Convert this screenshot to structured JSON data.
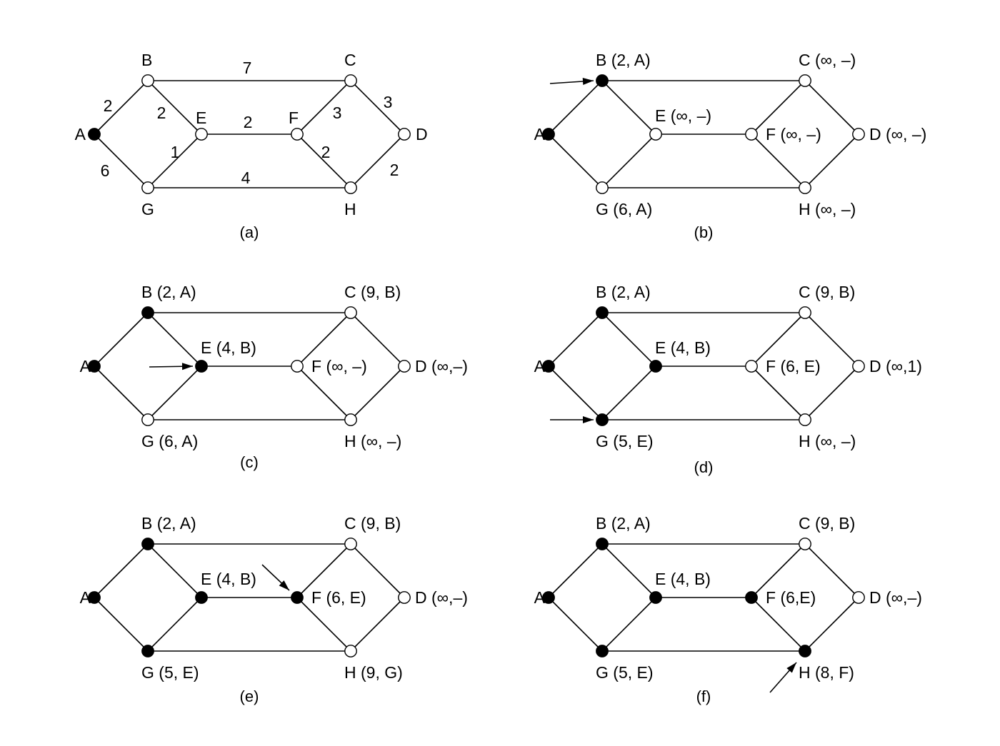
{
  "panels": [
    {
      "caption": "(a)",
      "nodes": {
        "A": {
          "label": "A",
          "filled": true
        },
        "B": {
          "label": "B",
          "filled": false
        },
        "C": {
          "label": "C",
          "filled": false
        },
        "D": {
          "label": "D",
          "filled": false
        },
        "E": {
          "label": "E",
          "filled": false
        },
        "F": {
          "label": "F",
          "filled": false
        },
        "G": {
          "label": "G",
          "filled": false
        },
        "H": {
          "label": "H",
          "filled": false
        }
      },
      "edge_weights": {
        "AB": "2",
        "AG": "6",
        "BC": "7",
        "BE": "2",
        "EF": "2",
        "EG": "1",
        "CF": "3",
        "CD": "3",
        "FH": "2",
        "DH": "2",
        "GH": "4"
      },
      "arrow_to": null
    },
    {
      "caption": "(b)",
      "nodes": {
        "A": {
          "label": "A",
          "filled": true
        },
        "B": {
          "label": "B (2, A)",
          "filled": true
        },
        "C": {
          "label": "C (∞, –)",
          "filled": false
        },
        "D": {
          "label": "D (∞, –)",
          "filled": false
        },
        "E": {
          "label": "E (∞, –)",
          "filled": false
        },
        "F": {
          "label": "F (∞, –)",
          "filled": false
        },
        "G": {
          "label": "G (6, A)",
          "filled": false
        },
        "H": {
          "label": "H (∞, –)",
          "filled": false
        }
      },
      "arrow_to": "B"
    },
    {
      "caption": "(c)",
      "nodes": {
        "A": {
          "label": "A",
          "filled": true
        },
        "B": {
          "label": "B (2, A)",
          "filled": true
        },
        "C": {
          "label": "C (9, B)",
          "filled": false
        },
        "D": {
          "label": "D (∞,–)",
          "filled": false
        },
        "E": {
          "label": "E (4, B)",
          "filled": true
        },
        "F": {
          "label": "F (∞, –)",
          "filled": false
        },
        "G": {
          "label": "G (6, A)",
          "filled": false
        },
        "H": {
          "label": "H (∞, –)",
          "filled": false
        }
      },
      "arrow_to": "E"
    },
    {
      "caption": "(d)",
      "nodes": {
        "A": {
          "label": "A",
          "filled": true
        },
        "B": {
          "label": "B (2, A)",
          "filled": true
        },
        "C": {
          "label": "C (9, B)",
          "filled": false
        },
        "D": {
          "label": "D (∞,1)",
          "filled": false
        },
        "E": {
          "label": "E (4, B)",
          "filled": true
        },
        "F": {
          "label": "F (6, E)",
          "filled": false
        },
        "G": {
          "label": "G (5, E)",
          "filled": true
        },
        "H": {
          "label": "H (∞, –)",
          "filled": false
        }
      },
      "arrow_to": "G"
    },
    {
      "caption": "(e)",
      "nodes": {
        "A": {
          "label": "A",
          "filled": true
        },
        "B": {
          "label": "B (2, A)",
          "filled": true
        },
        "C": {
          "label": "C (9, B)",
          "filled": false
        },
        "D": {
          "label": "D (∞,–)",
          "filled": false
        },
        "E": {
          "label": "E (4, B)",
          "filled": true
        },
        "F": {
          "label": "F (6, E)",
          "filled": true
        },
        "G": {
          "label": "G (5, E)",
          "filled": true
        },
        "H": {
          "label": "H (9, G)",
          "filled": false
        }
      },
      "arrow_to": "F"
    },
    {
      "caption": "(f)",
      "nodes": {
        "A": {
          "label": "A",
          "filled": true
        },
        "B": {
          "label": "B (2, A)",
          "filled": true
        },
        "C": {
          "label": "C (9, B)",
          "filled": false
        },
        "D": {
          "label": "D (∞,–)",
          "filled": false
        },
        "E": {
          "label": "E (4, B)",
          "filled": true
        },
        "F": {
          "label": "F (6,E)",
          "filled": true
        },
        "G": {
          "label": "G (5, E)",
          "filled": true
        },
        "H": {
          "label": "H (8, F)",
          "filled": true
        }
      },
      "arrow_to": "H"
    }
  ]
}
